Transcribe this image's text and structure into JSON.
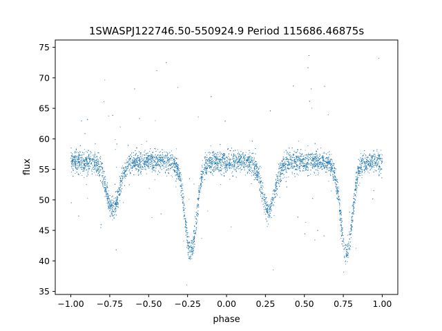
{
  "chart_data": {
    "type": "scatter",
    "title": "1SWASPJ122746.50-550924.9 Period 115686.46875s",
    "xlabel": "phase",
    "ylabel": "flux",
    "xlim": [
      -1.1,
      1.1
    ],
    "ylim": [
      34.5,
      76.2
    ],
    "x_ticks": [
      -1.0,
      -0.75,
      -0.5,
      -0.25,
      0.0,
      0.25,
      0.5,
      0.75,
      1.0
    ],
    "x_tick_labels": [
      "−1.00",
      "−0.75",
      "−0.50",
      "−0.25",
      "0.00",
      "0.25",
      "0.50",
      "0.75",
      "1.00"
    ],
    "y_ticks": [
      35,
      40,
      45,
      50,
      55,
      60,
      65,
      70,
      75
    ],
    "y_tick_labels": [
      "35",
      "40",
      "45",
      "50",
      "55",
      "60",
      "65",
      "70",
      "75"
    ],
    "grid": false,
    "legend": "none",
    "point_color": "#1f77b4",
    "series": [
      {
        "x_range": [
          -1.0,
          1.0
        ],
        "baseline_flux": 56.2,
        "scatter_sigma": 0.9,
        "eclipses": [
          {
            "phase": -0.73,
            "min_flux": 48.5
          },
          {
            "phase": -0.23,
            "min_flux": 41.3
          },
          {
            "phase": 0.27,
            "min_flux": 48.5
          },
          {
            "phase": 0.77,
            "min_flux": 41.3
          }
        ]
      }
    ]
  }
}
